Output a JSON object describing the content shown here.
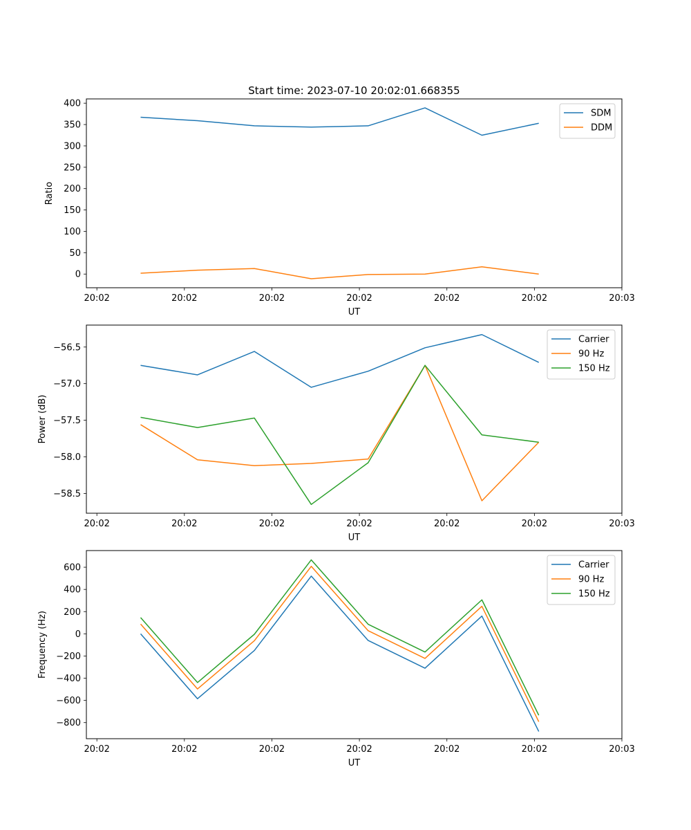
{
  "figure_title": "Start time: 2023-07-10 20:02:01.668355",
  "chart_data": [
    {
      "type": "line",
      "ylabel": "Ratio",
      "xlabel": "UT",
      "xticklabels": [
        "20:02",
        "20:02",
        "20:02",
        "20:02",
        "20:02",
        "20:02",
        "20:03"
      ],
      "xticks": [
        0,
        1,
        2,
        3,
        4,
        5,
        6
      ],
      "xlim": [
        -0.12,
        6
      ],
      "x": [
        0.5,
        1.15,
        1.8,
        2.45,
        3.1,
        3.75,
        4.4,
        5.05
      ],
      "ylim": [
        -32,
        410
      ],
      "yticks": [
        0,
        50,
        100,
        150,
        200,
        250,
        300,
        350,
        400
      ],
      "legend": "top-right",
      "series": [
        {
          "name": "SDM",
          "color": "#1f77b4",
          "values": [
            367,
            359,
            347,
            344,
            347,
            389,
            325,
            353
          ]
        },
        {
          "name": "DDM",
          "color": "#ff7f0e",
          "values": [
            2,
            9,
            13,
            -11,
            -1,
            0,
            17,
            0
          ]
        }
      ]
    },
    {
      "type": "line",
      "ylabel": "Power (dB)",
      "xlabel": "UT",
      "xticklabels": [
        "20:02",
        "20:02",
        "20:02",
        "20:02",
        "20:02",
        "20:02",
        "20:03"
      ],
      "xticks": [
        0,
        1,
        2,
        3,
        4,
        5,
        6
      ],
      "xlim": [
        -0.12,
        6
      ],
      "x": [
        0.5,
        1.15,
        1.8,
        2.45,
        3.1,
        3.75,
        4.4,
        5.05
      ],
      "ylim": [
        -58.77,
        -56.2
      ],
      "yticks": [
        -58.5,
        -58.0,
        -57.5,
        -57.0,
        -56.5
      ],
      "yticklabels": [
        "−58.5",
        "−58.0",
        "−57.5",
        "−57.0",
        "−56.5"
      ],
      "legend": "top-right",
      "series": [
        {
          "name": "Carrier",
          "color": "#1f77b4",
          "values": [
            -56.75,
            -56.88,
            -56.56,
            -57.05,
            -56.83,
            -56.51,
            -56.33,
            -56.71
          ]
        },
        {
          "name": "90 Hz",
          "color": "#ff7f0e",
          "values": [
            -57.56,
            -58.04,
            -58.12,
            -58.09,
            -58.03,
            -56.75,
            -58.6,
            -57.8
          ]
        },
        {
          "name": "150 Hz",
          "color": "#2ca02c",
          "values": [
            -57.46,
            -57.6,
            -57.47,
            -58.65,
            -58.08,
            -56.75,
            -57.7,
            -57.8
          ]
        }
      ]
    },
    {
      "type": "line",
      "ylabel": "Frequency (Hz)",
      "xlabel": "UT",
      "xticklabels": [
        "20:02",
        "20:02",
        "20:02",
        "20:02",
        "20:02",
        "20:02",
        "20:03"
      ],
      "xticks": [
        0,
        1,
        2,
        3,
        4,
        5,
        6
      ],
      "xlim": [
        -0.12,
        6
      ],
      "x": [
        0.5,
        1.15,
        1.8,
        2.45,
        3.1,
        3.75,
        4.4,
        5.05
      ],
      "ylim": [
        -945,
        750
      ],
      "yticks": [
        -800,
        -600,
        -400,
        -200,
        0,
        200,
        400,
        600
      ],
      "yticklabels": [
        "−800",
        "−600",
        "−400",
        "−200",
        "0",
        "200",
        "400",
        "600"
      ],
      "legend": "top-right",
      "series": [
        {
          "name": "Carrier",
          "color": "#1f77b4",
          "values": [
            0,
            -585,
            -150,
            520,
            -60,
            -310,
            160,
            -880
          ]
        },
        {
          "name": "90 Hz",
          "color": "#ff7f0e",
          "values": [
            88,
            -497,
            -62,
            608,
            28,
            -222,
            248,
            -792
          ]
        },
        {
          "name": "150 Hz",
          "color": "#2ca02c",
          "values": [
            146,
            -439,
            -4,
            666,
            86,
            -164,
            306,
            -734
          ]
        }
      ]
    }
  ]
}
